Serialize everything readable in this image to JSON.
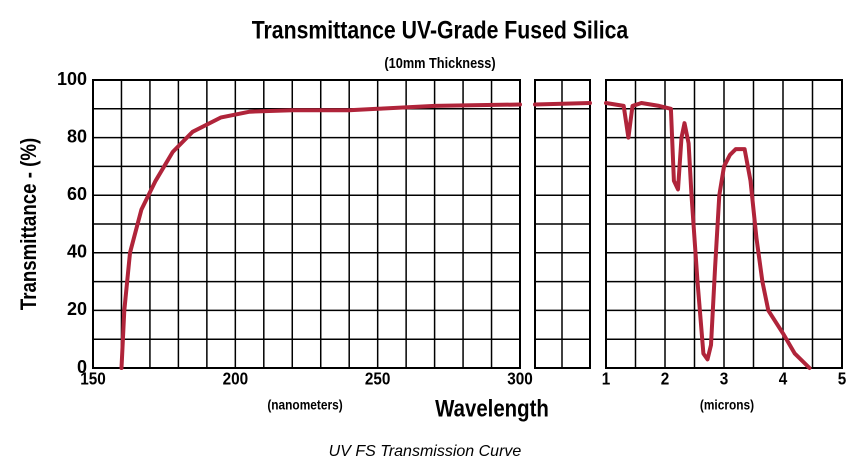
{
  "chart_data": [
    {
      "type": "line",
      "title": "Transmittance UV-Grade Fused Silica",
      "subtitle": "(10mm Thickness)",
      "y_label": "Transmittance - (%)",
      "x_label": "Wavelength",
      "x_unit": "(nanometers)",
      "color": "#b0243a",
      "x": [
        160,
        161,
        163,
        167,
        172,
        178,
        185,
        195,
        205,
        220,
        240,
        250,
        270,
        300
      ],
      "values": [
        0,
        20,
        40,
        55,
        65,
        75,
        82,
        87,
        89,
        89.5,
        89.5,
        90,
        91,
        91.5
      ],
      "xlim": [
        150,
        300
      ],
      "xticks": [
        150,
        200,
        250,
        300
      ],
      "xgrid": [
        150,
        160,
        170,
        180,
        190,
        200,
        210,
        220,
        230,
        240,
        250,
        260,
        270,
        280,
        290,
        300
      ],
      "ylim": [
        0,
        100
      ],
      "yticks": [
        0,
        20,
        40,
        60,
        80,
        100
      ],
      "ygrid": [
        0,
        10,
        20,
        30,
        40,
        50,
        60,
        70,
        80,
        90,
        100
      ]
    },
    {
      "type": "line",
      "color": "#b0243a",
      "categories": [
        null,
        null
      ],
      "values": [
        91.5,
        92
      ],
      "ylim": [
        0,
        100
      ],
      "ygrid": [
        0,
        10,
        20,
        30,
        40,
        50,
        60,
        70,
        80,
        90,
        100
      ]
    },
    {
      "type": "line",
      "x_unit": "(microns)",
      "color": "#b0243a",
      "x": [
        1.0,
        1.3,
        1.38,
        1.45,
        1.6,
        1.9,
        2.1,
        2.15,
        2.22,
        2.28,
        2.33,
        2.4,
        2.45,
        2.55,
        2.65,
        2.72,
        2.78,
        2.85,
        2.92,
        3.0,
        3.1,
        3.2,
        3.35,
        3.45,
        3.55,
        3.65,
        3.75,
        4.0,
        4.2,
        4.45
      ],
      "values": [
        92,
        91,
        80,
        91,
        92,
        91,
        90,
        65,
        62,
        80,
        85,
        78,
        60,
        30,
        5,
        3,
        8,
        35,
        60,
        70,
        74,
        76,
        76,
        65,
        45,
        30,
        20,
        12,
        5,
        0
      ],
      "xlim": [
        1,
        5
      ],
      "xticks": [
        1,
        2,
        3,
        4,
        5
      ],
      "xgrid": [
        1,
        1.5,
        2,
        2.5,
        3,
        3.5,
        4,
        4.5,
        5
      ],
      "ylim": [
        0,
        100
      ],
      "ygrid": [
        0,
        10,
        20,
        30,
        40,
        50,
        60,
        70,
        80,
        90,
        100
      ]
    }
  ],
  "caption": "UV FS Transmission Curve"
}
